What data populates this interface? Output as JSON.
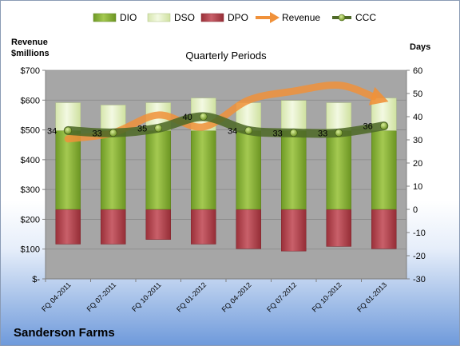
{
  "chart_data": {
    "type": "bar",
    "title": "Quarterly Periods",
    "company": "Sanderson Farms",
    "left_axis": {
      "label_line1": "Revenue",
      "label_line2": "$millions",
      "ylim": [
        0,
        700
      ],
      "ticks": [
        "$-",
        "$100",
        "$200",
        "$300",
        "$400",
        "$500",
        "$600",
        "$700"
      ]
    },
    "right_axis": {
      "label": "Days",
      "ylim": [
        -30,
        60
      ],
      "ticks": [
        "-30",
        "-20",
        "-10",
        "0",
        "10",
        "20",
        "30",
        "40",
        "50",
        "60"
      ]
    },
    "categories": [
      "FQ 04-2011",
      "FQ 07-2011",
      "FQ 10-2011",
      "FQ 01-2012",
      "FQ 04-2012",
      "FQ 07-2012",
      "FQ 10-2012",
      "FQ 01-2013"
    ],
    "series": [
      {
        "name": "DIO",
        "axis": "right",
        "values": [
          34,
          34,
          34,
          34,
          34,
          34,
          34,
          34
        ]
      },
      {
        "name": "DSO",
        "axis": "right",
        "values": [
          12,
          11,
          12,
          14,
          12,
          13,
          12,
          14
        ]
      },
      {
        "name": "DPO",
        "axis": "right",
        "values": [
          -15,
          -15,
          -13,
          -15,
          -17,
          -18,
          -16,
          -17
        ]
      },
      {
        "name": "Revenue",
        "axis": "left",
        "values": [
          470,
          490,
          550,
          510,
          600,
          630,
          650,
          600
        ]
      },
      {
        "name": "CCC",
        "axis": "right",
        "values": [
          34,
          33,
          35,
          40,
          34,
          33,
          33,
          36
        ]
      }
    ],
    "ccc_labels": [
      "34",
      "33",
      "35",
      "40",
      "34",
      "33",
      "33",
      "36"
    ],
    "legend": "top",
    "grid": true,
    "colors": {
      "DIO": "#8db33b",
      "DSO": "#e4f0c4",
      "DPO": "#b5464f",
      "Revenue": "#f0913a",
      "CCC": "#4f6a28",
      "plot_bg": "#a6a6a6"
    }
  }
}
